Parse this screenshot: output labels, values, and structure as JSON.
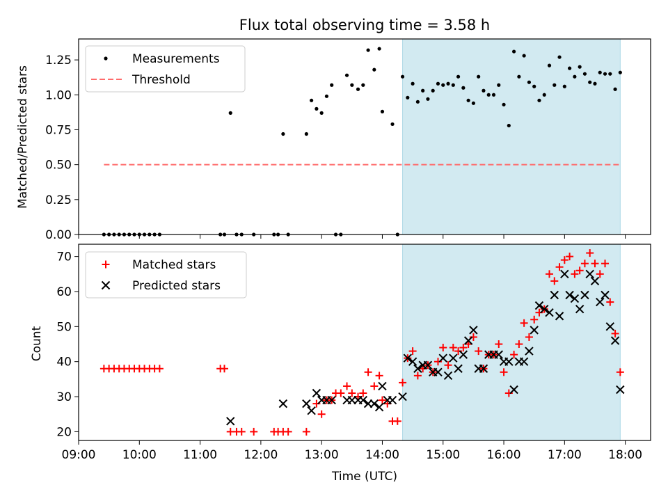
{
  "colors": {
    "shade": "#add8e6",
    "threshold": "#ff6b6b",
    "matched": "#ff0000",
    "predicted": "#000000",
    "measurement": "#000000"
  },
  "chart_data": [
    {
      "type": "scatter",
      "title": "Flux total observing time = 3.58 h",
      "xlabel": "",
      "ylabel": "Matched/Predicted stars",
      "xlim": [
        "09:00",
        "18:25"
      ],
      "ylim": [
        0,
        1.4
      ],
      "yticks": [
        "0.00",
        "0.25",
        "0.50",
        "0.75",
        "1.00",
        "1.25"
      ],
      "shaded_span": [
        "14:20",
        "17:55"
      ],
      "legend": {
        "position": "top-left",
        "entries": [
          "Measurements",
          "Threshold"
        ]
      },
      "threshold": {
        "name": "Threshold",
        "value": 0.5,
        "x_range": [
          "09:25",
          "17:55"
        ]
      },
      "series": [
        {
          "name": "Measurements",
          "marker": "dot",
          "points": [
            [
              "09:25",
              0
            ],
            [
              "09:30",
              0
            ],
            [
              "09:35",
              0
            ],
            [
              "09:40",
              0
            ],
            [
              "09:45",
              0
            ],
            [
              "09:50",
              0
            ],
            [
              "09:55",
              0
            ],
            [
              "10:00",
              0
            ],
            [
              "10:05",
              0
            ],
            [
              "10:10",
              0
            ],
            [
              "10:15",
              0
            ],
            [
              "10:20",
              0
            ],
            [
              "11:20",
              0
            ],
            [
              "11:24",
              0
            ],
            [
              "11:30",
              0.87
            ],
            [
              "11:36",
              0
            ],
            [
              "11:41",
              0
            ],
            [
              "11:53",
              0
            ],
            [
              "12:13",
              0
            ],
            [
              "12:17",
              0
            ],
            [
              "12:22",
              0.72
            ],
            [
              "12:27",
              0
            ],
            [
              "12:45",
              0.72
            ],
            [
              "12:50",
              0.96
            ],
            [
              "12:55",
              0.9
            ],
            [
              "13:00",
              0.87
            ],
            [
              "13:05",
              0.99
            ],
            [
              "13:10",
              1.07
            ],
            [
              "13:14",
              0
            ],
            [
              "13:19",
              0
            ],
            [
              "13:25",
              1.14
            ],
            [
              "13:30",
              1.07
            ],
            [
              "13:36",
              1.04
            ],
            [
              "13:41",
              1.07
            ],
            [
              "13:46",
              1.32
            ],
            [
              "13:52",
              1.18
            ],
            [
              "13:57",
              1.33
            ],
            [
              "14:00",
              0.88
            ],
            [
              "14:10",
              0.79
            ],
            [
              "14:15",
              0
            ],
            [
              "14:20",
              1.13
            ],
            [
              "14:25",
              0.98
            ],
            [
              "14:30",
              1.08
            ],
            [
              "14:35",
              0.95
            ],
            [
              "14:40",
              1.03
            ],
            [
              "14:45",
              0.97
            ],
            [
              "14:50",
              1.03
            ],
            [
              "14:55",
              1.08
            ],
            [
              "15:00",
              1.07
            ],
            [
              "15:05",
              1.08
            ],
            [
              "15:10",
              1.07
            ],
            [
              "15:15",
              1.13
            ],
            [
              "15:20",
              1.05
            ],
            [
              "15:25",
              0.96
            ],
            [
              "15:30",
              0.94
            ],
            [
              "15:35",
              1.13
            ],
            [
              "15:40",
              1.03
            ],
            [
              "15:45",
              1.0
            ],
            [
              "15:50",
              1.0
            ],
            [
              "15:55",
              1.07
            ],
            [
              "16:00",
              0.93
            ],
            [
              "16:05",
              0.78
            ],
            [
              "16:10",
              1.31
            ],
            [
              "16:15",
              1.13
            ],
            [
              "16:20",
              1.28
            ],
            [
              "16:25",
              1.09
            ],
            [
              "16:30",
              1.06
            ],
            [
              "16:35",
              0.96
            ],
            [
              "16:40",
              1.0
            ],
            [
              "16:45",
              1.21
            ],
            [
              "16:50",
              1.07
            ],
            [
              "16:55",
              1.27
            ],
            [
              "17:00",
              1.06
            ],
            [
              "17:05",
              1.19
            ],
            [
              "17:10",
              1.13
            ],
            [
              "17:15",
              1.2
            ],
            [
              "17:20",
              1.15
            ],
            [
              "17:25",
              1.09
            ],
            [
              "17:30",
              1.08
            ],
            [
              "17:35",
              1.16
            ],
            [
              "17:40",
              1.15
            ],
            [
              "17:45",
              1.15
            ],
            [
              "17:50",
              1.04
            ],
            [
              "17:55",
              1.16
            ]
          ]
        }
      ]
    },
    {
      "type": "scatter",
      "title": "",
      "xlabel": "Time (UTC)",
      "ylabel": "Count",
      "xlim": [
        "09:00",
        "18:25"
      ],
      "ylim": [
        17.5,
        73.5
      ],
      "yticks": [
        "20",
        "30",
        "40",
        "50",
        "60",
        "70"
      ],
      "xticks": [
        "09:00",
        "10:00",
        "11:00",
        "12:00",
        "13:00",
        "14:00",
        "15:00",
        "16:00",
        "17:00",
        "18:00"
      ],
      "shaded_span": [
        "14:20",
        "17:55"
      ],
      "legend": {
        "position": "top-left",
        "entries": [
          "Matched stars",
          "Predicted stars"
        ]
      },
      "series": [
        {
          "name": "Matched stars",
          "marker": "plus",
          "points": [
            [
              "09:25",
              38
            ],
            [
              "09:30",
              38
            ],
            [
              "09:35",
              38
            ],
            [
              "09:40",
              38
            ],
            [
              "09:45",
              38
            ],
            [
              "09:50",
              38
            ],
            [
              "09:55",
              38
            ],
            [
              "10:00",
              38
            ],
            [
              "10:05",
              38
            ],
            [
              "10:10",
              38
            ],
            [
              "10:15",
              38
            ],
            [
              "10:20",
              38
            ],
            [
              "11:20",
              38
            ],
            [
              "11:24",
              38
            ],
            [
              "11:30",
              20
            ],
            [
              "11:36",
              20
            ],
            [
              "11:41",
              20
            ],
            [
              "11:53",
              20
            ],
            [
              "12:13",
              20
            ],
            [
              "12:17",
              20
            ],
            [
              "12:22",
              20
            ],
            [
              "12:27",
              20
            ],
            [
              "12:45",
              20
            ],
            [
              "12:55",
              28
            ],
            [
              "13:00",
              25
            ],
            [
              "13:05",
              29
            ],
            [
              "13:10",
              29
            ],
            [
              "13:14",
              31
            ],
            [
              "13:19",
              31
            ],
            [
              "13:25",
              33
            ],
            [
              "13:30",
              31
            ],
            [
              "13:36",
              30
            ],
            [
              "13:41",
              31
            ],
            [
              "13:46",
              37
            ],
            [
              "13:52",
              33
            ],
            [
              "13:57",
              36
            ],
            [
              "14:00",
              29
            ],
            [
              "14:05",
              28
            ],
            [
              "14:10",
              23
            ],
            [
              "14:15",
              23
            ],
            [
              "14:20",
              34
            ],
            [
              "14:25",
              41
            ],
            [
              "14:30",
              43
            ],
            [
              "14:35",
              36
            ],
            [
              "14:40",
              38
            ],
            [
              "14:45",
              39
            ],
            [
              "14:50",
              37
            ],
            [
              "14:55",
              40
            ],
            [
              "15:00",
              44
            ],
            [
              "15:05",
              39
            ],
            [
              "15:10",
              44
            ],
            [
              "15:15",
              43
            ],
            [
              "15:20",
              44
            ],
            [
              "15:25",
              45
            ],
            [
              "15:30",
              47
            ],
            [
              "15:35",
              43
            ],
            [
              "15:40",
              38
            ],
            [
              "15:45",
              42
            ],
            [
              "15:50",
              42
            ],
            [
              "15:55",
              45
            ],
            [
              "16:00",
              37
            ],
            [
              "16:05",
              31
            ],
            [
              "16:10",
              42
            ],
            [
              "16:15",
              45
            ],
            [
              "16:20",
              51
            ],
            [
              "16:25",
              47
            ],
            [
              "16:30",
              52
            ],
            [
              "16:35",
              54
            ],
            [
              "16:40",
              55
            ],
            [
              "16:45",
              65
            ],
            [
              "16:50",
              63
            ],
            [
              "16:55",
              67
            ],
            [
              "17:00",
              69
            ],
            [
              "17:05",
              70
            ],
            [
              "17:10",
              65
            ],
            [
              "17:15",
              66
            ],
            [
              "17:20",
              68
            ],
            [
              "17:25",
              71
            ],
            [
              "17:30",
              68
            ],
            [
              "17:35",
              65
            ],
            [
              "17:40",
              68
            ],
            [
              "17:45",
              57
            ],
            [
              "17:50",
              48
            ],
            [
              "17:55",
              37
            ]
          ]
        },
        {
          "name": "Predicted stars",
          "marker": "x",
          "points": [
            [
              "11:30",
              23
            ],
            [
              "12:22",
              28
            ],
            [
              "12:45",
              28
            ],
            [
              "12:50",
              26
            ],
            [
              "12:55",
              31
            ],
            [
              "13:00",
              29
            ],
            [
              "13:05",
              29
            ],
            [
              "13:10",
              29
            ],
            [
              "13:25",
              29
            ],
            [
              "13:30",
              29
            ],
            [
              "13:36",
              29
            ],
            [
              "13:41",
              29
            ],
            [
              "13:46",
              28
            ],
            [
              "13:52",
              28
            ],
            [
              "13:57",
              27
            ],
            [
              "14:00",
              33
            ],
            [
              "14:05",
              29
            ],
            [
              "14:10",
              29
            ],
            [
              "14:20",
              30
            ],
            [
              "14:25",
              41
            ],
            [
              "14:30",
              40
            ],
            [
              "14:35",
              38
            ],
            [
              "14:40",
              39
            ],
            [
              "14:45",
              39
            ],
            [
              "14:50",
              37
            ],
            [
              "14:55",
              37
            ],
            [
              "15:00",
              41
            ],
            [
              "15:05",
              36
            ],
            [
              "15:10",
              41
            ],
            [
              "15:15",
              38
            ],
            [
              "15:20",
              42
            ],
            [
              "15:25",
              46
            ],
            [
              "15:30",
              49
            ],
            [
              "15:35",
              38
            ],
            [
              "15:40",
              38
            ],
            [
              "15:45",
              42
            ],
            [
              "15:50",
              42
            ],
            [
              "15:55",
              42
            ],
            [
              "16:00",
              40
            ],
            [
              "16:05",
              40
            ],
            [
              "16:10",
              32
            ],
            [
              "16:15",
              40
            ],
            [
              "16:20",
              40
            ],
            [
              "16:25",
              43
            ],
            [
              "16:30",
              49
            ],
            [
              "16:35",
              56
            ],
            [
              "16:40",
              55
            ],
            [
              "16:45",
              54
            ],
            [
              "16:50",
              59
            ],
            [
              "16:55",
              53
            ],
            [
              "17:00",
              65
            ],
            [
              "17:05",
              59
            ],
            [
              "17:10",
              58
            ],
            [
              "17:15",
              55
            ],
            [
              "17:20",
              59
            ],
            [
              "17:25",
              65
            ],
            [
              "17:30",
              63
            ],
            [
              "17:35",
              57
            ],
            [
              "17:40",
              59
            ],
            [
              "17:45",
              50
            ],
            [
              "17:50",
              46
            ],
            [
              "17:55",
              32
            ]
          ]
        }
      ]
    }
  ]
}
